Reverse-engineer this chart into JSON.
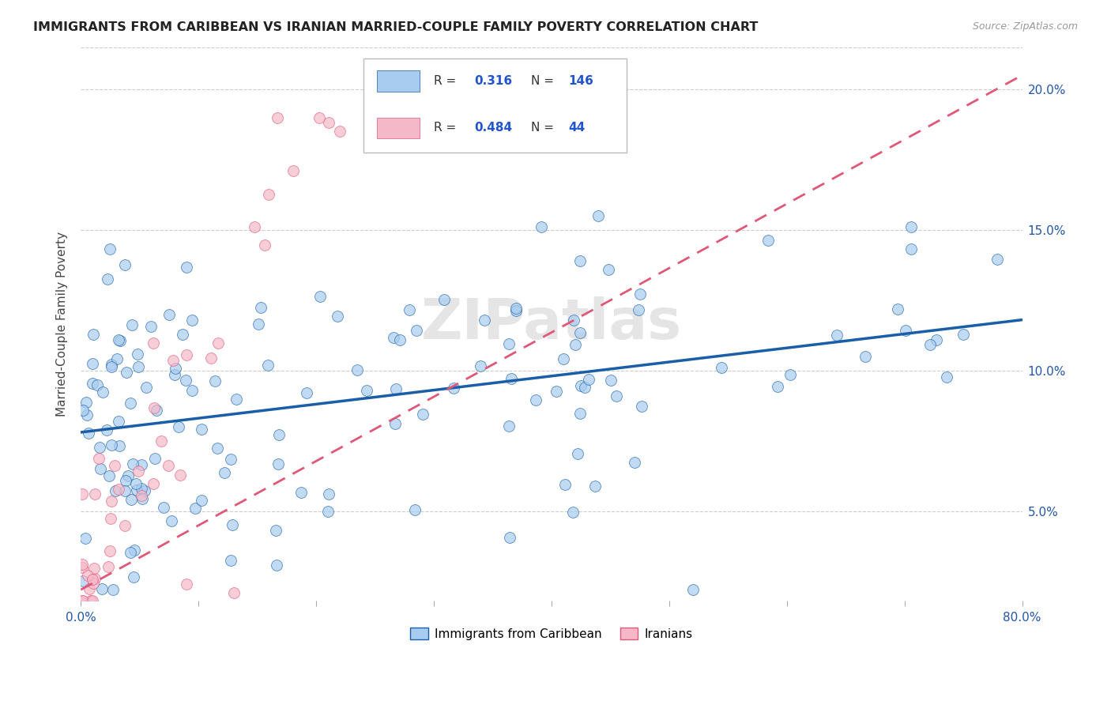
{
  "title": "IMMIGRANTS FROM CARIBBEAN VS IRANIAN MARRIED-COUPLE FAMILY POVERTY CORRELATION CHART",
  "source": "Source: ZipAtlas.com",
  "ylabel": "Married-Couple Family Poverty",
  "x_min": 0.0,
  "x_max": 0.8,
  "y_min": 0.018,
  "y_max": 0.215,
  "legend1_R": "0.316",
  "legend1_N": "146",
  "legend2_R": "0.484",
  "legend2_N": "44",
  "color_caribbean": "#A8CCF0",
  "color_iranian": "#F5B8C8",
  "color_line_caribbean": "#1A5EA8",
  "color_line_iranian": "#E05878",
  "watermark": "ZIPatlas",
  "carib_line_start_y": 0.08,
  "carib_line_end_y": 0.118,
  "iran_line_start_y": 0.022,
  "iran_line_end_y": 0.205
}
